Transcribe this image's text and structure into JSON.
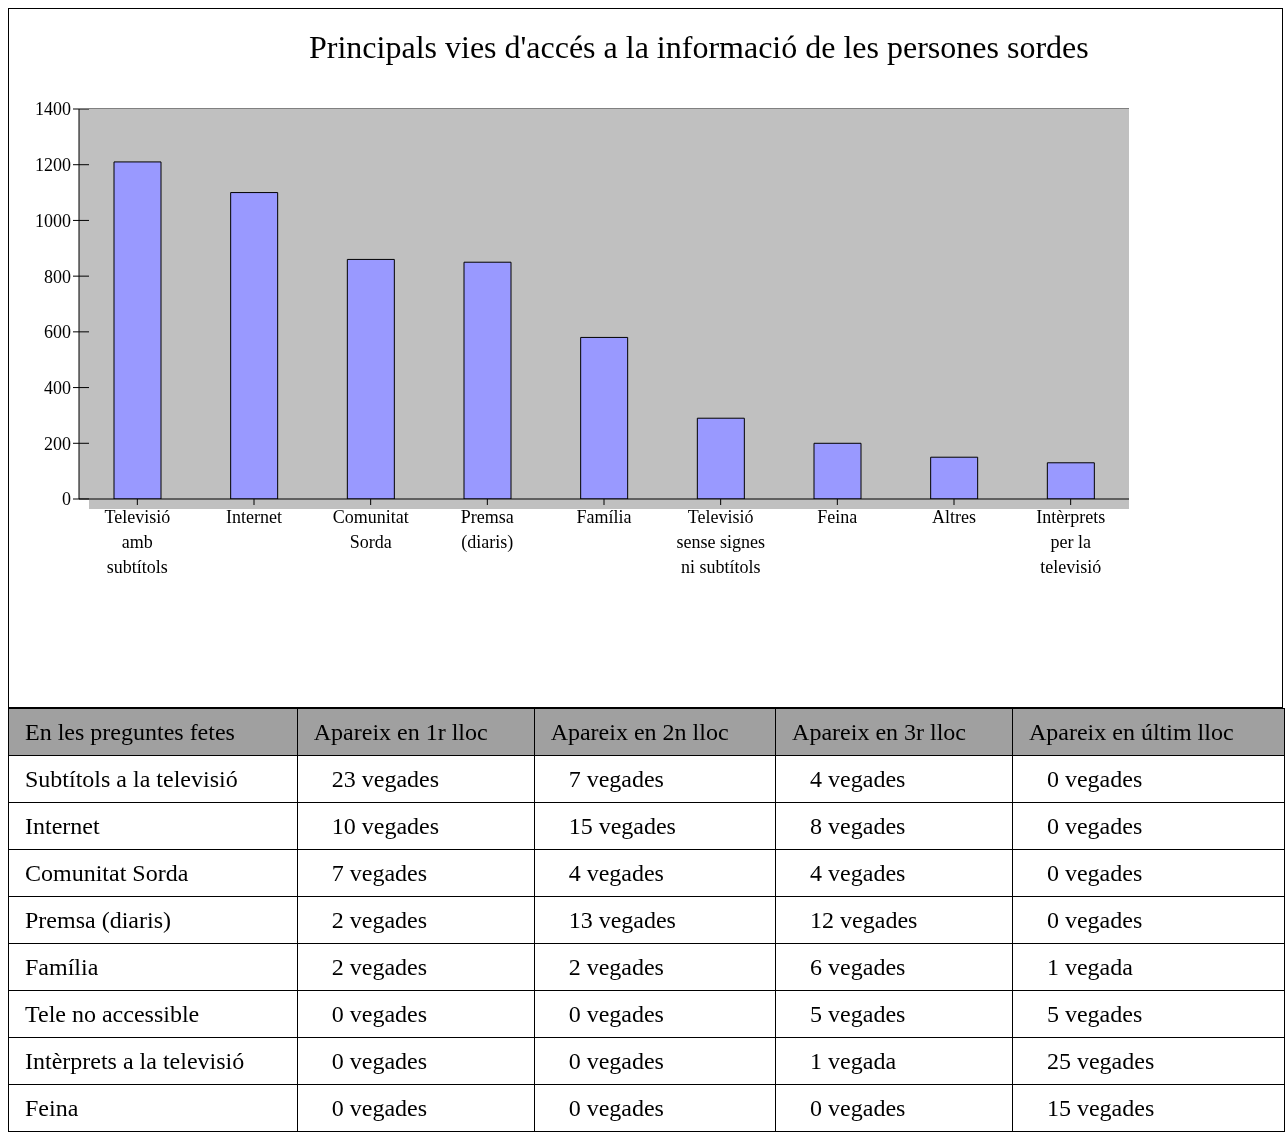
{
  "chart_data": [
    {
      "type": "bar",
      "title": "Principals vies d'accés a la informació de les persones sordes",
      "categories": [
        "Televisió amb subtítols",
        "Internet",
        "Comunitat Sorda",
        "Premsa (diaris)",
        "Família",
        "Televisió sense signes ni subtítols",
        "Feina",
        "Altres",
        "Intèrprets per la televisió"
      ],
      "values": [
        1210,
        1100,
        860,
        850,
        580,
        290,
        200,
        150,
        130
      ],
      "color": "#9999ff",
      "ylim": [
        0,
        1400
      ],
      "yticks": [
        0,
        200,
        400,
        600,
        800,
        1000,
        1200,
        1400
      ],
      "grid": "y",
      "legend": false
    },
    {
      "type": "other",
      "categories": [
        "En les preguntes fetes",
        "Apareix en 1r lloc",
        "Apareix en 2n lloc",
        "Apareix en 3r lloc",
        "Apareix en últim lloc"
      ],
      "y_categories": [
        "Subtítols a la televisió",
        "Internet",
        "Comunitat Sorda",
        "Premsa (diaris)",
        "Família",
        "Tele no accessible",
        "Intèrprets a la televisió",
        "Feina"
      ],
      "cell_labels": [
        [
          "23 vegades",
          "7 vegades",
          "4 vegades",
          "0 vegades"
        ],
        [
          "10 vegades",
          "15 vegades",
          "8 vegades",
          "0 vegades"
        ],
        [
          "7 vegades",
          "4 vegades",
          "4 vegades",
          "0 vegades"
        ],
        [
          "2 vegades",
          "13 vegades",
          "12 vegades",
          "0 vegades"
        ],
        [
          "2 vegades",
          "2 vegades",
          "6 vegades",
          "1 vegada"
        ],
        [
          "0 vegades",
          "0 vegades",
          "5 vegades",
          "5 vegades"
        ],
        [
          "0 vegades",
          "0 vegades",
          "1 vegada",
          "25 vegades"
        ],
        [
          "0 vegades",
          "0 vegades",
          "0 vegades",
          "15 vegades"
        ]
      ]
    }
  ]
}
